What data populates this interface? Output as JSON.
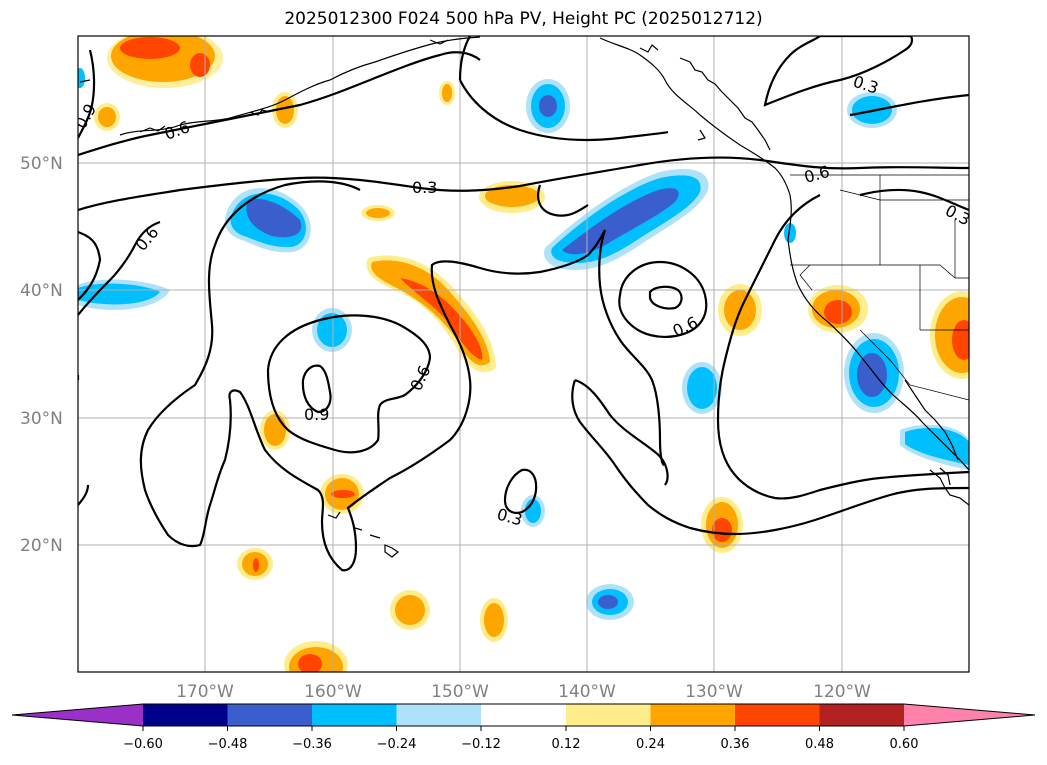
{
  "title": "2025012300 F024 500 hPa PV, Height PC (2025012712)",
  "lat_labels": [
    "50°N",
    "40°N",
    "30°N",
    "20°N"
  ],
  "lon_labels": [
    "170°W",
    "160°W",
    "150°W",
    "140°W",
    "130°W",
    "120°W"
  ],
  "contour_labels": [
    "0.3",
    "0.3",
    "0.3",
    "0.3",
    "0.6",
    "0.6",
    "0.6",
    "0.6",
    "0.6",
    "0.9",
    "0.9"
  ],
  "colorbar": {
    "ticks": [
      "−0.60",
      "−0.48",
      "−0.36",
      "−0.24",
      "−0.12",
      "0.12",
      "0.24",
      "0.36",
      "0.48",
      "0.60"
    ],
    "colors": {
      "under": "#9b30c8",
      "b1": "#00008b",
      "b2": "#3a5fcd",
      "b3": "#00bfff",
      "b4": "#aee2fa",
      "b5": "#ffffff",
      "b6": "#ffec8b",
      "b7": "#ffa500",
      "b8": "#ff4500",
      "b9": "#b22222",
      "over": "#ff82ab"
    }
  }
}
